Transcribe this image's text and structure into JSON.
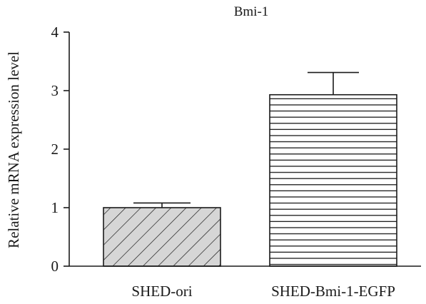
{
  "chart_data": {
    "type": "bar",
    "title": "Bmi-1",
    "xlabel": "",
    "ylabel": "Relative mRNA expression level",
    "categories": [
      "SHED-ori",
      "SHED-Bmi-1-EGFP"
    ],
    "values": [
      1.0,
      2.93
    ],
    "error": [
      0.08,
      0.38
    ],
    "ylim": [
      0,
      4
    ],
    "yticks": [
      0,
      1,
      2,
      3,
      4
    ],
    "bar_patterns": [
      "diagonal-hatch",
      "horizontal-lines"
    ],
    "bar_colors": [
      "#d6d6d6",
      "#ffffff"
    ],
    "grid": false,
    "legend": "none"
  }
}
